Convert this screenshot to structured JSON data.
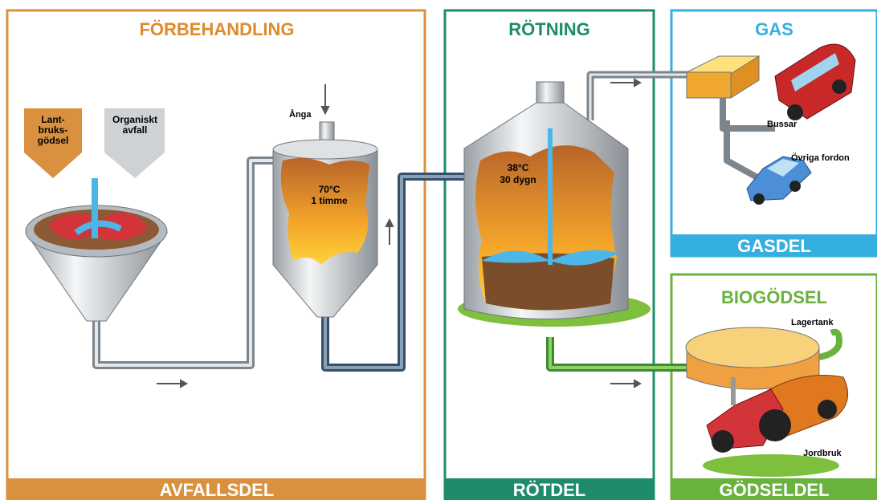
{
  "sections": [
    {
      "title": "FÖRBEHANDLING",
      "footer": "AVFALLSDEL"
    },
    {
      "title": "RÖTNING",
      "footer": "RÖTDEL"
    },
    {
      "title": "GAS",
      "footer": "GASDEL"
    },
    {
      "title": "BIOGÖDSEL",
      "footer": "GÖDSELDEL"
    }
  ],
  "inputs": [
    {
      "label": [
        "Lant-",
        "bruks-",
        "gödsel"
      ]
    },
    {
      "label": [
        "Organiskt",
        "avfall"
      ]
    }
  ],
  "steam": "Ånga",
  "hygienization": [
    "70°C",
    "1 timme"
  ],
  "digestion": [
    "38°C",
    "30 dygn"
  ],
  "gas_uses": [
    "Bussar",
    "Övriga fordon"
  ],
  "fertilizer_labels": [
    "Lagertank",
    "Jordbruk"
  ]
}
